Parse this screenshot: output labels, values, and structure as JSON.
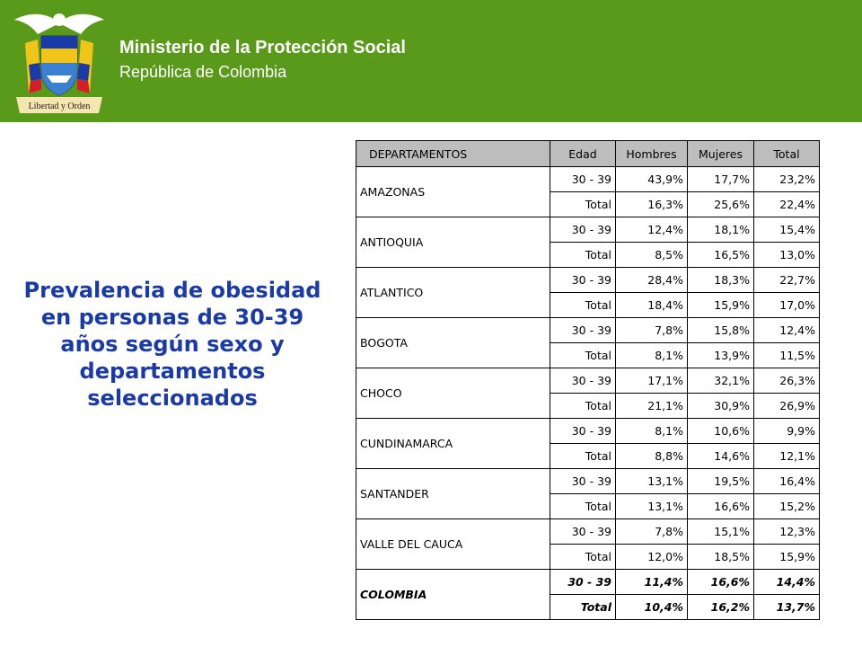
{
  "header": {
    "ministry": "Ministerio de la Protección Social",
    "republic": "República de Colombia",
    "crest_motto": "Libertad y Orden"
  },
  "title": "Prevalencia de obesidad en personas de 30-39 años según sexo y departamentos seleccionados",
  "table": {
    "headers": [
      "DEPARTAMENTOS",
      "Edad",
      "Hombres",
      "Mujeres",
      "Total"
    ],
    "rows": [
      {
        "dept": "AMAZONAS",
        "r1": [
          "30 - 39",
          "43,9%",
          "17,7%",
          "23,2%"
        ],
        "r2": [
          "Total",
          "16,3%",
          "25,6%",
          "22,4%"
        ]
      },
      {
        "dept": "ANTIOQUIA",
        "r1": [
          "30 - 39",
          "12,4%",
          "18,1%",
          "15,4%"
        ],
        "r2": [
          "Total",
          "8,5%",
          "16,5%",
          "13,0%"
        ]
      },
      {
        "dept": "ATLANTICO",
        "r1": [
          "30 - 39",
          "28,4%",
          "18,3%",
          "22,7%"
        ],
        "r2": [
          "Total",
          "18,4%",
          "15,9%",
          "17,0%"
        ]
      },
      {
        "dept": "BOGOTA",
        "r1": [
          "30 - 39",
          "7,8%",
          "15,8%",
          "12,4%"
        ],
        "r2": [
          "Total",
          "8,1%",
          "13,9%",
          "11,5%"
        ]
      },
      {
        "dept": "CHOCO",
        "r1": [
          "30 - 39",
          "17,1%",
          "32,1%",
          "26,3%"
        ],
        "r2": [
          "Total",
          "21,1%",
          "30,9%",
          "26,9%"
        ]
      },
      {
        "dept": "CUNDINAMARCA",
        "r1": [
          "30 - 39",
          "8,1%",
          "10,6%",
          "9,9%"
        ],
        "r2": [
          "Total",
          "8,8%",
          "14,6%",
          "12,1%"
        ]
      },
      {
        "dept": "SANTANDER",
        "r1": [
          "30 - 39",
          "13,1%",
          "19,5%",
          "16,4%"
        ],
        "r2": [
          "Total",
          "13,1%",
          "16,6%",
          "15,2%"
        ]
      },
      {
        "dept": "VALLE DEL CAUCA",
        "r1": [
          "30 - 39",
          "7,8%",
          "15,1%",
          "12,3%"
        ],
        "r2": [
          "Total",
          "12,0%",
          "18,5%",
          "15,9%"
        ]
      },
      {
        "dept": "COLOMBIA",
        "r1": [
          "30 - 39",
          "11,4%",
          "16,6%",
          "14,4%"
        ],
        "r2": [
          "Total",
          "10,4%",
          "16,2%",
          "13,7%"
        ]
      }
    ]
  },
  "colors": {
    "header_green": "#5a9a1a",
    "title_blue": "#1a3aa8",
    "table_header_gray": "#bdbdbd"
  }
}
